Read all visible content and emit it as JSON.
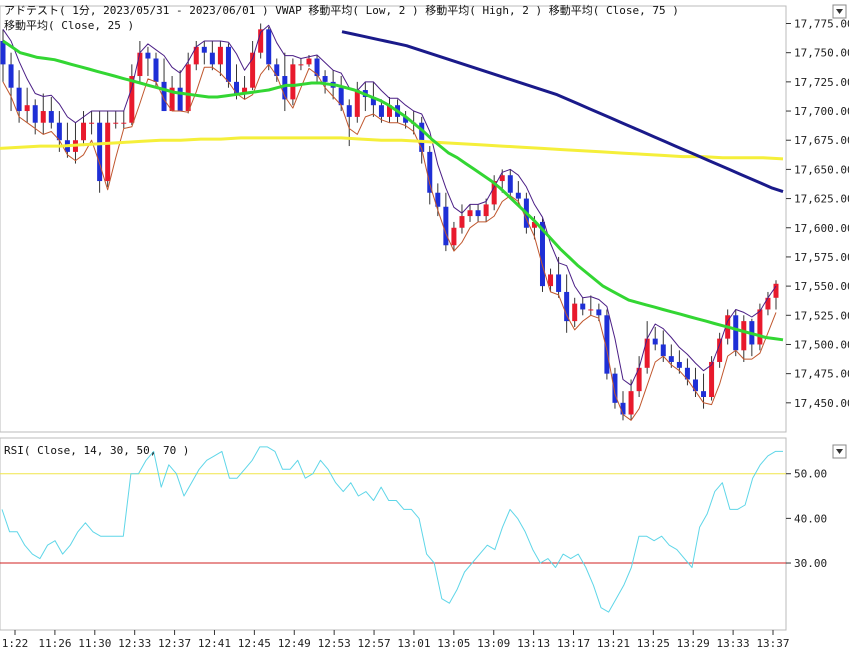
{
  "header": {
    "main_title": "アドテスト( 1分, 2023/05/31 - 2023/06/01 )   VWAP   移動平均( Low, 2 )   移動平均( High, 2 )   移動平均( Close, 75 )",
    "main_title2": "移動平均( Close, 25 )",
    "rsi_title": "RSI( Close, 14, 30, 50, 70 )"
  },
  "colors": {
    "up": "#e8192c",
    "down": "#1e2fd6",
    "vwap": "#f5ef3a",
    "ma25": "#33d633",
    "ma75": "#1a1a8a",
    "ma_low": "#c0572e",
    "ma_high": "#4b1f86",
    "rsi": "#5fd6e8",
    "rsi_50": "#f0e64a",
    "rsi_30": "#d02020"
  },
  "chart_data": [
    {
      "type": "candlestick",
      "title": "アドテスト( 1分, 2023/05/31 - 2023/06/01 )",
      "ylim": [
        17425,
        17790
      ],
      "yticks": [
        17450,
        17475,
        17500,
        17525,
        17550,
        17575,
        17600,
        17625,
        17650,
        17675,
        17700,
        17725,
        17750,
        17775
      ],
      "ytick_labels": [
        "17,450.00",
        "17,475.00",
        "17,500.00",
        "17,525.00",
        "17,550.00",
        "17,575.00",
        "17,600.00",
        "17,625.00",
        "17,650.00",
        "17,675.00",
        "17,700.00",
        "17,725.00",
        "17,750.00",
        "17,775.00"
      ],
      "xtick_labels": [
        "1:22",
        "11:26",
        "11:30",
        "12:33",
        "12:37",
        "12:41",
        "12:45",
        "12:49",
        "12:53",
        "12:57",
        "13:01",
        "13:05",
        "13:09",
        "13:13",
        "13:17",
        "13:21",
        "13:25",
        "13:29",
        "13:33",
        "13:37"
      ],
      "candles": [
        {
          "o": 17760,
          "h": 17770,
          "l": 17725,
          "c": 17740
        },
        {
          "o": 17740,
          "h": 17750,
          "l": 17700,
          "c": 17720
        },
        {
          "o": 17720,
          "h": 17735,
          "l": 17690,
          "c": 17700
        },
        {
          "o": 17700,
          "h": 17720,
          "l": 17690,
          "c": 17705
        },
        {
          "o": 17705,
          "h": 17710,
          "l": 17680,
          "c": 17690
        },
        {
          "o": 17690,
          "h": 17715,
          "l": 17680,
          "c": 17700
        },
        {
          "o": 17700,
          "h": 17712,
          "l": 17685,
          "c": 17690
        },
        {
          "o": 17690,
          "h": 17700,
          "l": 17665,
          "c": 17675
        },
        {
          "o": 17675,
          "h": 17690,
          "l": 17660,
          "c": 17665
        },
        {
          "o": 17665,
          "h": 17690,
          "l": 17655,
          "c": 17675
        },
        {
          "o": 17675,
          "h": 17700,
          "l": 17670,
          "c": 17690
        },
        {
          "o": 17690,
          "h": 17700,
          "l": 17680,
          "c": 17690
        },
        {
          "o": 17690,
          "h": 17700,
          "l": 17630,
          "c": 17640
        },
        {
          "o": 17640,
          "h": 17700,
          "l": 17635,
          "c": 17690
        },
        {
          "o": 17690,
          "h": 17700,
          "l": 17685,
          "c": 17690
        },
        {
          "o": 17690,
          "h": 17700,
          "l": 17685,
          "c": 17690
        },
        {
          "o": 17690,
          "h": 17740,
          "l": 17688,
          "c": 17730
        },
        {
          "o": 17730,
          "h": 17760,
          "l": 17725,
          "c": 17750
        },
        {
          "o": 17750,
          "h": 17755,
          "l": 17730,
          "c": 17745
        },
        {
          "o": 17745,
          "h": 17750,
          "l": 17720,
          "c": 17725
        },
        {
          "o": 17725,
          "h": 17745,
          "l": 17700,
          "c": 17700
        },
        {
          "o": 17700,
          "h": 17730,
          "l": 17700,
          "c": 17720
        },
        {
          "o": 17720,
          "h": 17735,
          "l": 17700,
          "c": 17700
        },
        {
          "o": 17700,
          "h": 17750,
          "l": 17698,
          "c": 17740
        },
        {
          "o": 17740,
          "h": 17760,
          "l": 17735,
          "c": 17755
        },
        {
          "o": 17755,
          "h": 17760,
          "l": 17740,
          "c": 17750
        },
        {
          "o": 17750,
          "h": 17760,
          "l": 17735,
          "c": 17740
        },
        {
          "o": 17740,
          "h": 17760,
          "l": 17730,
          "c": 17755
        },
        {
          "o": 17755,
          "h": 17758,
          "l": 17720,
          "c": 17725
        },
        {
          "o": 17725,
          "h": 17740,
          "l": 17710,
          "c": 17715
        },
        {
          "o": 17715,
          "h": 17730,
          "l": 17710,
          "c": 17720
        },
        {
          "o": 17720,
          "h": 17760,
          "l": 17718,
          "c": 17750
        },
        {
          "o": 17750,
          "h": 17775,
          "l": 17745,
          "c": 17770
        },
        {
          "o": 17770,
          "h": 17772,
          "l": 17735,
          "c": 17740
        },
        {
          "o": 17740,
          "h": 17745,
          "l": 17725,
          "c": 17730
        },
        {
          "o": 17730,
          "h": 17750,
          "l": 17700,
          "c": 17710
        },
        {
          "o": 17710,
          "h": 17745,
          "l": 17705,
          "c": 17740
        },
        {
          "o": 17740,
          "h": 17745,
          "l": 17735,
          "c": 17740
        },
        {
          "o": 17740,
          "h": 17748,
          "l": 17738,
          "c": 17745
        },
        {
          "o": 17745,
          "h": 17748,
          "l": 17725,
          "c": 17730
        },
        {
          "o": 17730,
          "h": 17735,
          "l": 17715,
          "c": 17725
        },
        {
          "o": 17725,
          "h": 17735,
          "l": 17710,
          "c": 17720
        },
        {
          "o": 17720,
          "h": 17730,
          "l": 17700,
          "c": 17705
        },
        {
          "o": 17705,
          "h": 17710,
          "l": 17670,
          "c": 17695
        },
        {
          "o": 17695,
          "h": 17725,
          "l": 17690,
          "c": 17718
        },
        {
          "o": 17718,
          "h": 17725,
          "l": 17700,
          "c": 17712
        },
        {
          "o": 17712,
          "h": 17725,
          "l": 17695,
          "c": 17705
        },
        {
          "o": 17705,
          "h": 17710,
          "l": 17690,
          "c": 17695
        },
        {
          "o": 17695,
          "h": 17712,
          "l": 17690,
          "c": 17705
        },
        {
          "o": 17705,
          "h": 17710,
          "l": 17690,
          "c": 17695
        },
        {
          "o": 17695,
          "h": 17700,
          "l": 17685,
          "c": 17690
        },
        {
          "o": 17690,
          "h": 17700,
          "l": 17680,
          "c": 17690
        },
        {
          "o": 17690,
          "h": 17695,
          "l": 17655,
          "c": 17665
        },
        {
          "o": 17665,
          "h": 17670,
          "l": 17620,
          "c": 17630
        },
        {
          "o": 17630,
          "h": 17638,
          "l": 17610,
          "c": 17618
        },
        {
          "o": 17618,
          "h": 17630,
          "l": 17580,
          "c": 17585
        },
        {
          "o": 17585,
          "h": 17605,
          "l": 17580,
          "c": 17600
        },
        {
          "o": 17600,
          "h": 17620,
          "l": 17595,
          "c": 17610
        },
        {
          "o": 17610,
          "h": 17620,
          "l": 17605,
          "c": 17615
        },
        {
          "o": 17615,
          "h": 17620,
          "l": 17605,
          "c": 17610
        },
        {
          "o": 17610,
          "h": 17625,
          "l": 17605,
          "c": 17620
        },
        {
          "o": 17620,
          "h": 17645,
          "l": 17615,
          "c": 17640
        },
        {
          "o": 17640,
          "h": 17650,
          "l": 17630,
          "c": 17645
        },
        {
          "o": 17645,
          "h": 17650,
          "l": 17625,
          "c": 17630
        },
        {
          "o": 17630,
          "h": 17640,
          "l": 17620,
          "c": 17625
        },
        {
          "o": 17625,
          "h": 17630,
          "l": 17595,
          "c": 17600
        },
        {
          "o": 17600,
          "h": 17610,
          "l": 17590,
          "c": 17605
        },
        {
          "o": 17605,
          "h": 17608,
          "l": 17545,
          "c": 17550
        },
        {
          "o": 17550,
          "h": 17565,
          "l": 17545,
          "c": 17560
        },
        {
          "o": 17560,
          "h": 17575,
          "l": 17540,
          "c": 17545
        },
        {
          "o": 17545,
          "h": 17560,
          "l": 17510,
          "c": 17520
        },
        {
          "o": 17520,
          "h": 17540,
          "l": 17515,
          "c": 17535
        },
        {
          "o": 17535,
          "h": 17540,
          "l": 17525,
          "c": 17530
        },
        {
          "o": 17530,
          "h": 17542,
          "l": 17525,
          "c": 17530
        },
        {
          "o": 17530,
          "h": 17535,
          "l": 17520,
          "c": 17525
        },
        {
          "o": 17525,
          "h": 17530,
          "l": 17470,
          "c": 17475
        },
        {
          "o": 17475,
          "h": 17480,
          "l": 17445,
          "c": 17450
        },
        {
          "o": 17450,
          "h": 17460,
          "l": 17435,
          "c": 17440
        },
        {
          "o": 17440,
          "h": 17470,
          "l": 17435,
          "c": 17460
        },
        {
          "o": 17460,
          "h": 17490,
          "l": 17455,
          "c": 17480
        },
        {
          "o": 17480,
          "h": 17520,
          "l": 17475,
          "c": 17505
        },
        {
          "o": 17505,
          "h": 17515,
          "l": 17495,
          "c": 17500
        },
        {
          "o": 17500,
          "h": 17512,
          "l": 17485,
          "c": 17490
        },
        {
          "o": 17490,
          "h": 17500,
          "l": 17480,
          "c": 17485
        },
        {
          "o": 17485,
          "h": 17495,
          "l": 17475,
          "c": 17480
        },
        {
          "o": 17480,
          "h": 17488,
          "l": 17465,
          "c": 17470
        },
        {
          "o": 17470,
          "h": 17480,
          "l": 17455,
          "c": 17460
        },
        {
          "o": 17460,
          "h": 17475,
          "l": 17445,
          "c": 17455
        },
        {
          "o": 17455,
          "h": 17490,
          "l": 17452,
          "c": 17485
        },
        {
          "o": 17485,
          "h": 17510,
          "l": 17480,
          "c": 17505
        },
        {
          "o": 17505,
          "h": 17530,
          "l": 17500,
          "c": 17525
        },
        {
          "o": 17525,
          "h": 17530,
          "l": 17490,
          "c": 17495
        },
        {
          "o": 17495,
          "h": 17525,
          "l": 17485,
          "c": 17520
        },
        {
          "o": 17520,
          "h": 17522,
          "l": 17490,
          "c": 17500
        },
        {
          "o": 17500,
          "h": 17535,
          "l": 17495,
          "c": 17530
        },
        {
          "o": 17530,
          "h": 17545,
          "l": 17525,
          "c": 17540
        },
        {
          "o": 17540,
          "h": 17555,
          "l": 17530,
          "c": 17552
        }
      ],
      "ma75": [
        17768,
        17766,
        17764,
        17762,
        17760,
        17758,
        17756,
        17753,
        17750,
        17747,
        17744,
        17741,
        17738,
        17735,
        17732,
        17729,
        17726,
        17723,
        17720,
        17717,
        17714,
        17710,
        17706,
        17702,
        17698,
        17694,
        17690,
        17686,
        17682,
        17678,
        17674,
        17670,
        17666,
        17662,
        17658,
        17654,
        17650,
        17646,
        17642,
        17638,
        17634,
        17631
      ],
      "ma25": [
        17760,
        17755,
        17750,
        17748,
        17746,
        17745,
        17744,
        17742,
        17740,
        17738,
        17736,
        17734,
        17732,
        17730,
        17728,
        17726,
        17724,
        17722,
        17720,
        17718,
        17716,
        17715,
        17714,
        17713,
        17712,
        17712,
        17713,
        17714,
        17715,
        17716,
        17717,
        17718,
        17720,
        17722,
        17722,
        17723,
        17724,
        17724,
        17723,
        17722,
        17720,
        17718,
        17715,
        17712,
        17709,
        17705,
        17700,
        17695,
        17689,
        17683,
        17676,
        17670,
        17664,
        17660,
        17655,
        17650,
        17645,
        17640,
        17634,
        17627,
        17620,
        17613,
        17606,
        17598,
        17590,
        17582,
        17575,
        17568,
        17562,
        17556,
        17550,
        17546,
        17542,
        17538,
        17536,
        17534,
        17532,
        17530,
        17528,
        17526,
        17524,
        17522,
        17520,
        17518,
        17516,
        17514,
        17512,
        17510,
        17508,
        17506,
        17505,
        17504
      ],
      "vwap": [
        17668,
        17669,
        17670,
        17670,
        17671,
        17672,
        17673,
        17674,
        17675,
        17675,
        17676,
        17676,
        17677,
        17677,
        17677,
        17677,
        17677,
        17677,
        17676,
        17675,
        17675,
        17674,
        17673,
        17672,
        17671,
        17670,
        17669,
        17668,
        17667,
        17666,
        17665,
        17664,
        17663,
        17662,
        17661,
        17661,
        17660,
        17660,
        17660,
        17659
      ]
    },
    {
      "type": "line",
      "title": "RSI( Close, 14, 30, 50, 70 )",
      "ylim": [
        15,
        58
      ],
      "yticks": [
        30,
        40,
        50
      ],
      "ytick_labels": [
        "30.00",
        "40.00",
        "50.00"
      ],
      "levels": [
        30,
        50
      ],
      "series": [
        {
          "values": [
            42,
            37,
            37,
            34,
            32,
            31,
            34,
            35,
            32,
            34,
            37,
            39,
            37,
            36,
            36,
            36,
            36,
            50,
            50,
            53,
            55,
            47,
            52,
            50,
            45,
            48,
            51,
            53,
            54,
            55,
            49,
            49,
            51,
            53,
            56,
            56,
            55,
            51,
            51,
            53,
            49,
            50,
            53,
            51,
            48,
            46,
            48,
            45,
            46,
            44,
            47,
            44,
            44,
            42,
            42,
            40,
            32,
            30,
            22,
            21,
            24,
            28,
            30,
            32,
            34,
            33,
            38,
            42,
            40,
            37,
            33,
            30,
            31,
            29,
            32,
            31,
            32,
            29,
            25,
            20,
            19,
            22,
            25,
            29,
            36,
            36,
            35,
            36,
            34,
            33,
            31,
            29,
            38,
            41,
            46,
            48,
            42,
            42,
            43,
            49,
            52,
            54,
            55,
            55
          ]
        }
      ]
    }
  ]
}
